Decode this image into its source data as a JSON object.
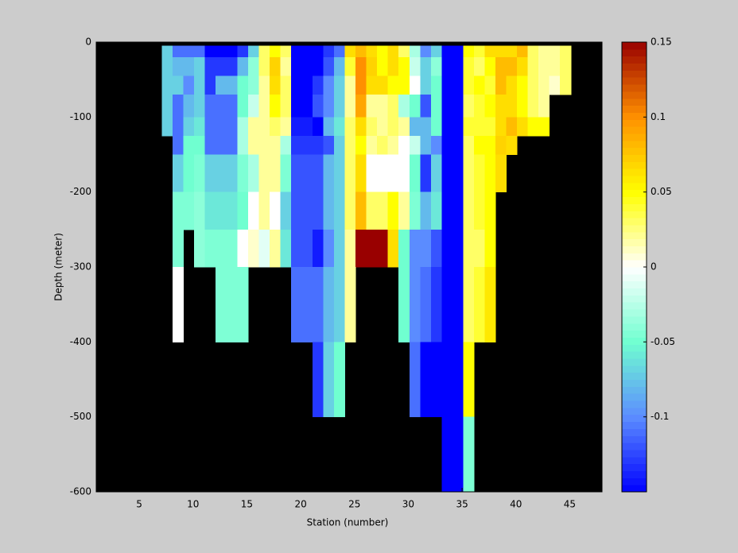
{
  "chart_data": {
    "type": "heatmap",
    "xlabel": "Station (number)",
    "ylabel": "Depth (meter)",
    "xlim": [
      1,
      48
    ],
    "ylim": [
      -600,
      0
    ],
    "xticks": [
      5,
      10,
      15,
      20,
      25,
      30,
      35,
      40,
      45
    ],
    "yticks": [
      0,
      -100,
      -200,
      -300,
      -400,
      -500,
      -600
    ],
    "xbins": [
      7.1,
      8.1,
      9.1,
      10.1,
      11.1,
      12.1,
      13.1,
      14.1,
      15.1,
      16.1,
      17.1,
      18.1,
      19.1,
      20.1,
      21.1,
      22.1,
      23.1,
      24.1,
      25.1,
      26.1,
      27.1,
      28.1,
      29.1,
      30.1,
      31.1,
      32.1,
      33.1,
      34.1,
      35.1,
      36.1,
      37.1,
      38.1,
      39.1,
      40.1,
      41.1,
      42.1,
      43.1,
      44.1,
      45.1
    ],
    "ybins": [
      -5,
      -20,
      -45,
      -70,
      -100,
      -125,
      -150,
      -200,
      -250,
      -300,
      -400,
      -500,
      -600
    ],
    "z": [
      [
        -0.07,
        -0.11,
        -0.11,
        -0.11,
        -0.15,
        -0.15,
        -0.15,
        -0.13,
        -0.07,
        0.03,
        0.05,
        0.03,
        -0.15,
        -0.15,
        -0.15,
        -0.13,
        -0.11,
        0.065,
        0.08,
        0.065,
        0.05,
        0.065,
        0.03,
        -0.03,
        -0.1,
        -0.07,
        -0.15,
        -0.15,
        0.05,
        0.04,
        0.065,
        0.065,
        0.065,
        0.08,
        0.03,
        0.02,
        0.02,
        0.03
      ],
      [
        -0.07,
        -0.08,
        -0.08,
        -0.07,
        -0.13,
        -0.13,
        -0.13,
        -0.08,
        -0.04,
        0.03,
        0.07,
        0.02,
        -0.15,
        -0.15,
        -0.15,
        -0.12,
        -0.08,
        0.04,
        0.1,
        0.07,
        0.05,
        0.065,
        0.05,
        -0.02,
        -0.07,
        -0.04,
        -0.15,
        -0.15,
        0.04,
        0.03,
        0.05,
        0.08,
        0.08,
        0.065,
        0.03,
        0.02,
        0.02,
        0.03
      ],
      [
        -0.07,
        -0.07,
        -0.1,
        -0.07,
        -0.13,
        -0.08,
        -0.08,
        -0.05,
        -0.04,
        0.02,
        0.065,
        0.03,
        -0.15,
        -0.15,
        -0.13,
        -0.1,
        -0.07,
        0.02,
        0.1,
        0.065,
        0.065,
        0.05,
        0.05,
        0,
        -0.07,
        -0.05,
        -0.15,
        -0.15,
        0.04,
        0.05,
        0.04,
        0.08,
        0.065,
        0.05,
        0.03,
        0.02,
        0.01,
        0.03
      ],
      [
        -0.07,
        -0.11,
        -0.08,
        -0.07,
        -0.11,
        -0.11,
        -0.11,
        -0.05,
        -0.02,
        0.02,
        0.05,
        0.03,
        -0.15,
        -0.15,
        -0.12,
        -0.1,
        -0.07,
        0.02,
        0.09,
        0.02,
        0.02,
        0.03,
        -0.03,
        -0.05,
        -0.12,
        -0.05,
        -0.15,
        -0.15,
        0.03,
        0.04,
        0.05,
        0.065,
        0.065,
        0.05,
        0.03,
        0.02,
        null,
        null
      ],
      [
        -0.07,
        -0.11,
        -0.07,
        -0.06,
        -0.11,
        -0.11,
        -0.11,
        -0.03,
        0.02,
        0.02,
        0.03,
        0.02,
        -0.14,
        -0.14,
        -0.15,
        -0.08,
        -0.06,
        0.03,
        0.065,
        0.03,
        0.02,
        0.03,
        0.02,
        -0.08,
        -0.08,
        -0.05,
        -0.15,
        -0.15,
        0.04,
        0.04,
        0.04,
        0.065,
        0.08,
        0.065,
        0.05,
        0.05,
        null,
        null
      ],
      [
        null,
        -0.11,
        -0.05,
        -0.05,
        -0.11,
        -0.11,
        -0.11,
        -0.03,
        0.02,
        0.02,
        0.02,
        -0.03,
        -0.13,
        -0.13,
        -0.13,
        -0.12,
        -0.07,
        0.03,
        0.05,
        0.02,
        0.03,
        0.02,
        0,
        -0.02,
        -0.08,
        -0.1,
        -0.15,
        -0.15,
        0.03,
        0.05,
        0.05,
        0.07,
        0.065,
        null,
        null,
        null,
        null,
        null
      ],
      [
        null,
        -0.07,
        -0.05,
        -0.045,
        -0.07,
        -0.07,
        -0.07,
        -0.045,
        -0.03,
        0.02,
        0.02,
        -0.045,
        -0.12,
        -0.12,
        -0.12,
        -0.08,
        -0.07,
        0.03,
        0.065,
        0,
        0,
        0,
        0,
        -0.05,
        -0.13,
        -0.07,
        -0.15,
        -0.15,
        0.03,
        0.04,
        0.05,
        0.065,
        null,
        null,
        null,
        null,
        null,
        null
      ],
      [
        null,
        -0.045,
        -0.045,
        -0.04,
        -0.06,
        -0.06,
        -0.06,
        -0.05,
        0,
        0.02,
        0,
        -0.07,
        -0.12,
        -0.12,
        -0.12,
        -0.08,
        -0.07,
        0.03,
        0.08,
        0.03,
        0.03,
        0.05,
        0.02,
        -0.045,
        -0.08,
        -0.06,
        -0.15,
        -0.15,
        0.03,
        0.04,
        0.05,
        null,
        null,
        null,
        null,
        null,
        null,
        null
      ],
      [
        null,
        -0.045,
        null,
        -0.04,
        -0.045,
        -0.045,
        -0.045,
        0,
        0.01,
        -0.01,
        0.02,
        -0.06,
        -0.12,
        -0.12,
        -0.14,
        -0.1,
        -0.07,
        0.02,
        0.15,
        0.15,
        0.15,
        0.065,
        -0.05,
        -0.1,
        -0.1,
        -0.12,
        -0.15,
        -0.15,
        0.03,
        0.03,
        0.05,
        null,
        null,
        null,
        null,
        null,
        null,
        null
      ],
      [
        null,
        0,
        null,
        null,
        null,
        -0.045,
        -0.045,
        -0.045,
        null,
        null,
        null,
        null,
        -0.11,
        -0.11,
        -0.11,
        -0.08,
        -0.07,
        0.02,
        null,
        null,
        null,
        null,
        -0.05,
        -0.1,
        -0.11,
        -0.13,
        -0.15,
        -0.15,
        0.03,
        0.04,
        0.06,
        null,
        null,
        null,
        null,
        null,
        null,
        null
      ],
      [
        null,
        null,
        null,
        null,
        null,
        null,
        null,
        null,
        null,
        null,
        null,
        null,
        null,
        null,
        -0.13,
        -0.07,
        -0.05,
        null,
        null,
        null,
        null,
        null,
        null,
        -0.11,
        -0.15,
        -0.15,
        -0.15,
        -0.15,
        0.05,
        null,
        null,
        null,
        null,
        null,
        null,
        null,
        null,
        null
      ],
      [
        null,
        null,
        null,
        null,
        null,
        null,
        null,
        null,
        null,
        null,
        null,
        null,
        null,
        null,
        null,
        null,
        null,
        null,
        null,
        null,
        null,
        null,
        null,
        null,
        null,
        null,
        -0.15,
        -0.15,
        -0.045,
        null,
        null,
        null,
        null,
        null,
        null,
        null,
        null,
        null
      ]
    ],
    "clim": [
      -0.15,
      0.15
    ],
    "cticks": [
      -0.1,
      -0.05,
      0,
      0.05,
      0.1,
      0.15
    ],
    "colormap": [
      "#0000ff",
      "#5b8cff",
      "#70ffd0",
      "#ffffff",
      "#ffff00",
      "#ff9000",
      "#990000"
    ],
    "nan_color": "#000000"
  }
}
